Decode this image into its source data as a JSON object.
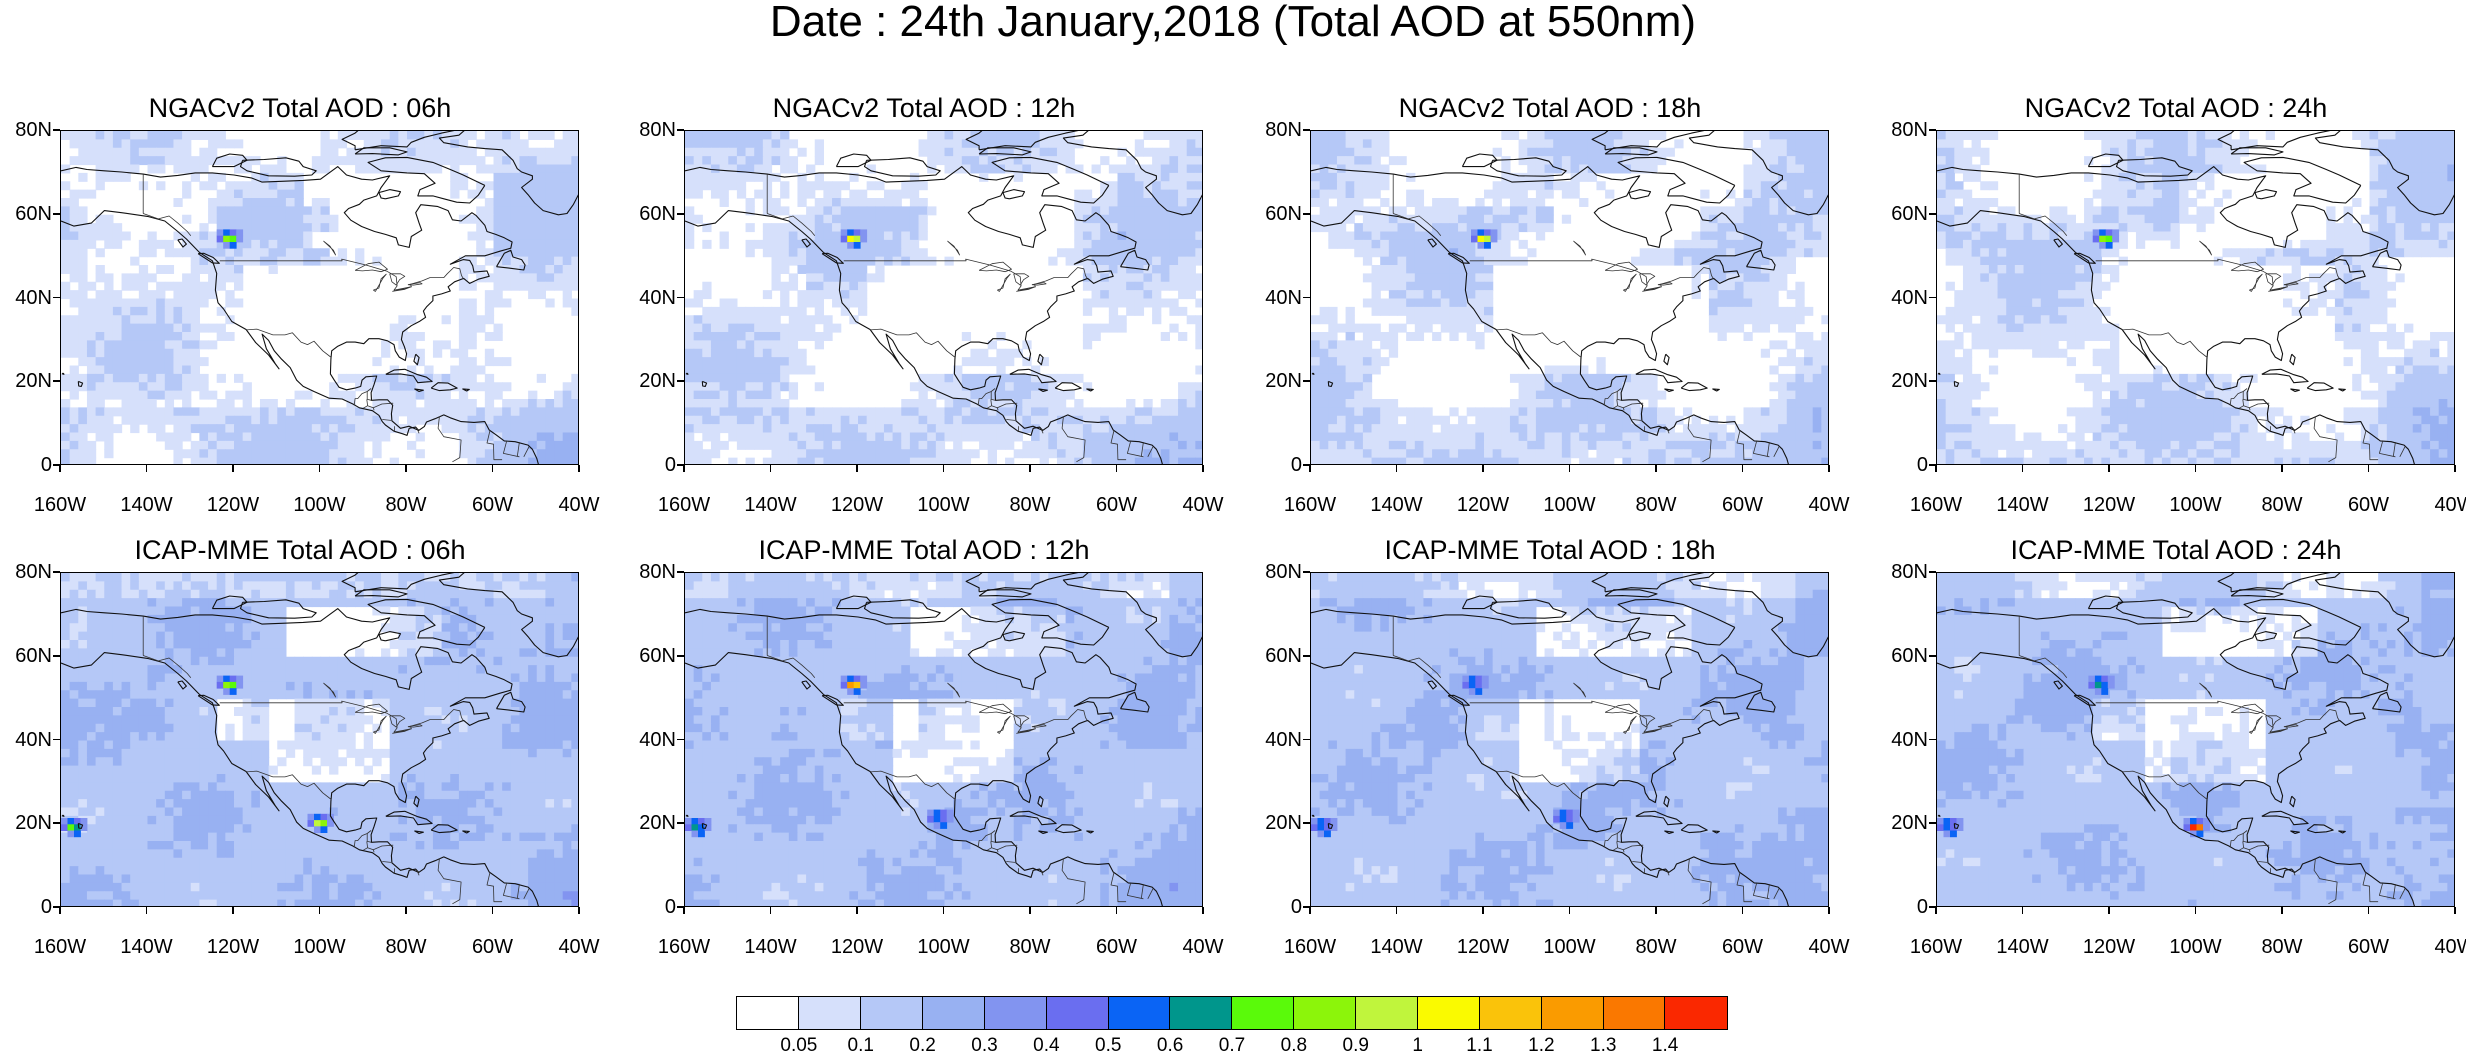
{
  "title": "Date : 24th January,2018 (Total AOD at 550nm)",
  "axes": {
    "y_labels": [
      "80N",
      "60N",
      "40N",
      "20N",
      "0"
    ],
    "x_labels": [
      "160W",
      "140W",
      "120W",
      "100W",
      "80W",
      "60W",
      "40W"
    ],
    "lat_range": [
      0,
      80
    ],
    "lon_range": [
      -160,
      -40
    ]
  },
  "panels": [
    {
      "title": "NGACv2 Total AOD : 06h",
      "model": "NGACv2",
      "forecast_hour": "06h",
      "hotspots": [
        {
          "lon": -121,
          "lat": 55,
          "level": 9
        }
      ]
    },
    {
      "title": "NGACv2 Total AOD : 12h",
      "model": "NGACv2",
      "forecast_hour": "12h",
      "hotspots": [
        {
          "lon": -121,
          "lat": 55,
          "level": 11
        }
      ]
    },
    {
      "title": "NGACv2 Total AOD : 18h",
      "model": "NGACv2",
      "forecast_hour": "18h",
      "hotspots": [
        {
          "lon": -120,
          "lat": 55,
          "level": 11
        }
      ]
    },
    {
      "title": "NGACv2 Total AOD : 24h",
      "model": "NGACv2",
      "forecast_hour": "24h",
      "hotspots": [
        {
          "lon": -121,
          "lat": 55,
          "level": 9
        }
      ]
    },
    {
      "title": "ICAP-MME Total AOD : 06h",
      "model": "ICAP-MME",
      "forecast_hour": "06h",
      "hotspots": [
        {
          "lon": -121,
          "lat": 54,
          "level": 9
        },
        {
          "lon": -100,
          "lat": 21,
          "level": 10
        },
        {
          "lon": -157,
          "lat": 20,
          "level": 8
        }
      ]
    },
    {
      "title": "ICAP-MME Total AOD : 12h",
      "model": "ICAP-MME",
      "forecast_hour": "12h",
      "hotspots": [
        {
          "lon": -121,
          "lat": 54,
          "level": 13
        },
        {
          "lon": -101,
          "lat": 22,
          "level": 6
        },
        {
          "lon": -157,
          "lat": 20,
          "level": 7
        }
      ]
    },
    {
      "title": "ICAP-MME Total AOD : 18h",
      "model": "ICAP-MME",
      "forecast_hour": "18h",
      "hotspots": [
        {
          "lon": -122,
          "lat": 54,
          "level": 6
        },
        {
          "lon": -101,
          "lat": 22,
          "level": 6
        },
        {
          "lon": -157,
          "lat": 20,
          "level": 6
        }
      ]
    },
    {
      "title": "ICAP-MME Total AOD : 24h",
      "model": "ICAP-MME",
      "forecast_hour": "24h",
      "hotspots": [
        {
          "lon": -122,
          "lat": 54,
          "level": 7
        },
        {
          "lon": -100,
          "lat": 20,
          "level": 15
        },
        {
          "lon": -157,
          "lat": 20,
          "level": 6
        }
      ]
    }
  ],
  "colorbar": {
    "labels": [
      "0.05",
      "0.1",
      "0.2",
      "0.3",
      "0.4",
      "0.5",
      "0.6",
      "0.7",
      "0.8",
      "0.9",
      "1",
      "1.1",
      "1.2",
      "1.3",
      "1.4"
    ],
    "colors": [
      "#ffffff",
      "#d6e0fb",
      "#b5c8f7",
      "#98b1f2",
      "#8294f0",
      "#6a6ef0",
      "#0a64f5",
      "#00968c",
      "#5afa0a",
      "#8cf50a",
      "#c0f53c",
      "#fafa00",
      "#fac30a",
      "#fa9b00",
      "#fa7800",
      "#fa2800"
    ]
  },
  "chart_data": [
    {
      "type": "heatmap",
      "title": "NGACv2 Total AOD : 06h",
      "units": "Total AOD at 550nm",
      "xlim": [
        -160,
        -40
      ],
      "ylim": [
        0,
        80
      ],
      "levels": [
        0.05,
        0.1,
        0.2,
        0.3,
        0.4,
        0.5,
        0.6,
        0.7,
        0.8,
        0.9,
        1,
        1.1,
        1.2,
        1.3,
        1.4
      ]
    },
    {
      "type": "heatmap",
      "title": "NGACv2 Total AOD : 12h",
      "units": "Total AOD at 550nm",
      "xlim": [
        -160,
        -40
      ],
      "ylim": [
        0,
        80
      ]
    },
    {
      "type": "heatmap",
      "title": "NGACv2 Total AOD : 18h",
      "units": "Total AOD at 550nm",
      "xlim": [
        -160,
        -40
      ],
      "ylim": [
        0,
        80
      ]
    },
    {
      "type": "heatmap",
      "title": "NGACv2 Total AOD : 24h",
      "units": "Total AOD at 550nm",
      "xlim": [
        -160,
        -40
      ],
      "ylim": [
        0,
        80
      ]
    },
    {
      "type": "heatmap",
      "title": "ICAP-MME Total AOD : 06h",
      "units": "Total AOD at 550nm",
      "xlim": [
        -160,
        -40
      ],
      "ylim": [
        0,
        80
      ]
    },
    {
      "type": "heatmap",
      "title": "ICAP-MME Total AOD : 12h",
      "units": "Total AOD at 550nm",
      "xlim": [
        -160,
        -40
      ],
      "ylim": [
        0,
        80
      ]
    },
    {
      "type": "heatmap",
      "title": "ICAP-MME Total AOD : 18h",
      "units": "Total AOD at 550nm",
      "xlim": [
        -160,
        -40
      ],
      "ylim": [
        0,
        80
      ]
    },
    {
      "type": "heatmap",
      "title": "ICAP-MME Total AOD : 24h",
      "units": "Total AOD at 550nm",
      "xlim": [
        -160,
        -40
      ],
      "ylim": [
        0,
        80
      ]
    }
  ]
}
